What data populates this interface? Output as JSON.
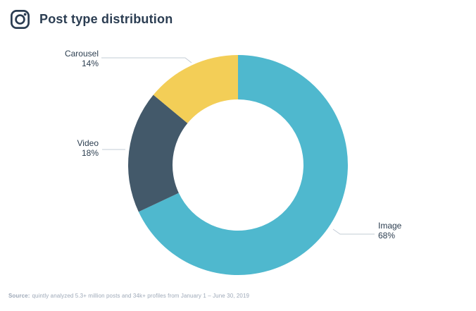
{
  "header": {
    "title": "Post type distribution",
    "icon": "instagram-icon"
  },
  "chart_data": {
    "type": "pie",
    "subtype": "donut",
    "title": "Post type distribution",
    "categories": [
      "Image",
      "Video",
      "Carousel"
    ],
    "values": [
      68,
      18,
      14
    ],
    "slices": [
      {
        "label": "Image",
        "value": 68,
        "pct_label": "68%",
        "color": "#4fb8ce"
      },
      {
        "label": "Video",
        "value": 18,
        "pct_label": "18%",
        "color": "#43596a"
      },
      {
        "label": "Carousel",
        "value": 14,
        "pct_label": "14%",
        "color": "#f3ce57"
      }
    ],
    "start_angle": "12 o'clock, clockwise, Image first",
    "donut_hole_ratio": 0.6,
    "legend": "none",
    "label_style": "outside callouts with leader lines (name + percent)"
  },
  "footer": {
    "source_prefix": "Source:",
    "source_text": "quintly analyzed 5.3+ million posts and 34k+ profiles from January 1 – June 30, 2019"
  },
  "style": {
    "leader_line_color": "#c3ccd6",
    "text_color": "#2c3e50"
  }
}
